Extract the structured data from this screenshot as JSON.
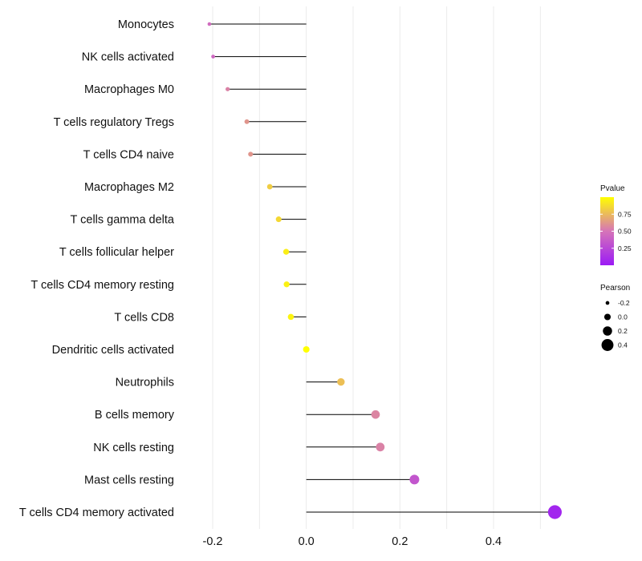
{
  "chart_data": {
    "type": "lollipop",
    "xlim": [
      -0.26,
      0.58
    ],
    "xticks": [
      -0.2,
      0.0,
      0.2,
      0.4
    ],
    "xtick_labels": [
      "-0.2",
      "0.0",
      "0.2",
      "0.4"
    ],
    "grid": true,
    "categories": [
      "Monocytes",
      "NK cells activated",
      "Macrophages M0",
      "T cells regulatory  Tregs ",
      "T cells CD4 naive",
      "Macrophages M2",
      "T cells gamma delta",
      "T cells follicular helper",
      "T cells CD4 memory resting",
      "T cells CD8",
      "Dendritic cells activated",
      "Neutrophils",
      "B cells memory",
      "NK cells resting",
      "Mast cells resting",
      "T cells CD4 memory activated"
    ],
    "pearson": [
      -0.207,
      -0.199,
      -0.168,
      -0.127,
      -0.119,
      -0.078,
      -0.059,
      -0.043,
      -0.042,
      -0.033,
      0.0,
      0.074,
      0.148,
      0.158,
      0.231,
      0.531
    ],
    "pvalue": [
      0.45,
      0.43,
      0.55,
      0.62,
      0.62,
      0.82,
      0.86,
      0.94,
      0.95,
      0.96,
      1.0,
      0.77,
      0.56,
      0.55,
      0.33,
      0.06
    ],
    "legend_pvalue": {
      "title": "Pvalue",
      "range": [
        0.0,
        1.0
      ],
      "ticks": [
        0.75,
        0.5,
        0.25
      ],
      "tick_labels": [
        "0.75",
        "0.50",
        "0.25"
      ],
      "color_low": "#9b1bf5",
      "color_mid": "#d674b8",
      "color_high": "#ffff00"
    },
    "legend_pearson": {
      "title": "Pearson",
      "values": [
        -0.2,
        0.0,
        0.2,
        0.4
      ],
      "labels": [
        "-0.2",
        "0.0",
        "0.2",
        "0.4"
      ]
    }
  }
}
